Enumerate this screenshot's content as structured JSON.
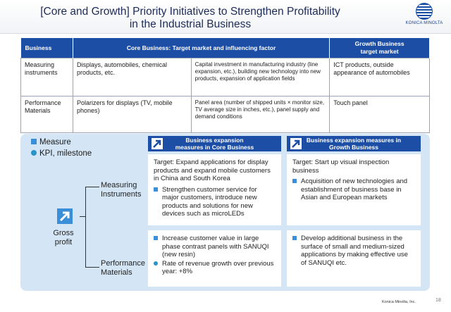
{
  "header": {
    "title_line1": "[Core and Growth] Priority Initiatives to Strengthen Profitability",
    "title_line2": "in the Industrial Business",
    "logo_text": "KONICA MINOLTA"
  },
  "table": {
    "headers": {
      "business": "Business",
      "core": "Core Business: Target market and influencing factor",
      "growth_line1": "Growth Business",
      "growth_line2": "target market"
    },
    "rows": [
      {
        "business": "Measuring instruments",
        "target_market": "Displays, automobiles, chemical products, etc.",
        "factor": "Capital investment in manufacturing industry (line expansion, etc.), building new technology into new products, expansion of application fields",
        "growth": "ICT products, outside appearance of automobiles"
      },
      {
        "business": "Performance Materials",
        "target_market": "Polarizers for displays (TV, mobile phones)",
        "factor": "Panel area (number of shipped units × monitor size, TV average size in inches, etc.), panel supply and demand conditions",
        "growth": "Touch panel"
      }
    ]
  },
  "legend": {
    "measure": "Measure",
    "kpi": "KPI, milestone"
  },
  "core_header": {
    "line1": "Business expansion",
    "line2": "measures in Core Business"
  },
  "growth_header": {
    "line1": "Business expansion measures in",
    "line2": "Growth Business"
  },
  "gross_profit": {
    "line1": "Gross",
    "line2": "profit"
  },
  "labels": {
    "measuring_line1": "Measuring",
    "measuring_line2": "Instruments",
    "performance_line1": "Performance",
    "performance_line2": "Materials"
  },
  "cards": {
    "core_measuring": {
      "target": "Target:  Expand applications for display products and expand mobile customers in China and South Korea",
      "measures": [
        "Strengthen customer service for major customers, introduce new products and solutions for new devices such as microLEDs"
      ]
    },
    "growth_measuring": {
      "target": "Target:  Start up visual inspection business",
      "measures": [
        "Acquisition of new technologies and establishment of business base in Asian and European markets"
      ]
    },
    "core_performance": {
      "measure": "Increase customer value in large phase contrast panels with SANUQI (new resin)",
      "kpi": "Rate of revenue growth over previous year: +8%"
    },
    "growth_performance": {
      "measure": "Develop additional business in the surface  of small and medium-sized applications by making effective use of SANUQI etc."
    }
  },
  "footer": {
    "company": "Konica Minolta, Inc.",
    "page": "18"
  },
  "colors": {
    "header_blue": "#1d4ea6",
    "panel_bg": "#d4e6f6",
    "bullet_blue": "#3a8fd8"
  }
}
